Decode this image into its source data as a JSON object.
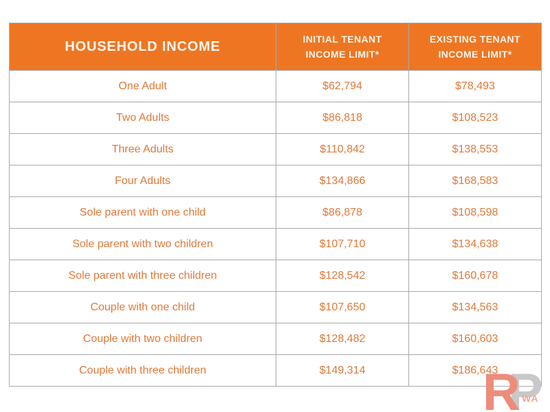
{
  "colors": {
    "header_bg": "#ee7623",
    "header_text": "#fbf5ed",
    "row_text": "#e0793a",
    "border": "#a9a9a9",
    "logo_r": "#ee8c7a",
    "logo_p": "#c8c8ca",
    "logo_wa": "#f2a795"
  },
  "table": {
    "header": {
      "col1": "HOUSEHOLD INCOME",
      "col2_line1": "INITIAL TENANT",
      "col2_line2": "INCOME LIMIT*",
      "col3_line1": "EXISTING TENANT",
      "col3_line2": "INCOME LIMIT*"
    },
    "rows": [
      {
        "label": "One Adult",
        "initial": "$62,794",
        "existing": "$78,493"
      },
      {
        "label": "Two Adults",
        "initial": "$86,818",
        "existing": "$108,523"
      },
      {
        "label": "Three Adults",
        "initial": "$110,842",
        "existing": "$138,553"
      },
      {
        "label": "Four Adults",
        "initial": "$134,866",
        "existing": "$168,583"
      },
      {
        "label": "Sole parent with one child",
        "initial": "$86,878",
        "existing": "$108,598"
      },
      {
        "label": "Sole parent with two children",
        "initial": "$107,710",
        "existing": "$134,638"
      },
      {
        "label": "Sole parent with three children",
        "initial": "$128,542",
        "existing": "$160,678"
      },
      {
        "label": "Couple with one child",
        "initial": "$107,650",
        "existing": "$134,563"
      },
      {
        "label": "Couple with two children",
        "initial": "$128,482",
        "existing": "$160,603"
      },
      {
        "label": "Couple with three children",
        "initial": "$149,314",
        "existing": "$186,643"
      }
    ]
  },
  "watermark": {
    "letter_r": "R",
    "letter_p": "P",
    "suffix": "WA"
  },
  "chart_data": {
    "type": "table",
    "title": "HOUSEHOLD INCOME",
    "columns": [
      "HOUSEHOLD INCOME",
      "INITIAL TENANT INCOME LIMIT*",
      "EXISTING TENANT INCOME LIMIT*"
    ],
    "categories": [
      "One Adult",
      "Two Adults",
      "Three Adults",
      "Four Adults",
      "Sole parent with one child",
      "Sole parent with two children",
      "Sole parent with three children",
      "Couple with one child",
      "Couple with two children",
      "Couple with three children"
    ],
    "series": [
      {
        "name": "INITIAL TENANT INCOME LIMIT*",
        "values": [
          62794,
          86818,
          110842,
          134866,
          86878,
          107710,
          128542,
          107650,
          128482,
          149314
        ]
      },
      {
        "name": "EXISTING TENANT INCOME LIMIT*",
        "values": [
          78493,
          108523,
          138553,
          168583,
          108598,
          134638,
          160678,
          134563,
          160603,
          186643
        ]
      }
    ]
  }
}
